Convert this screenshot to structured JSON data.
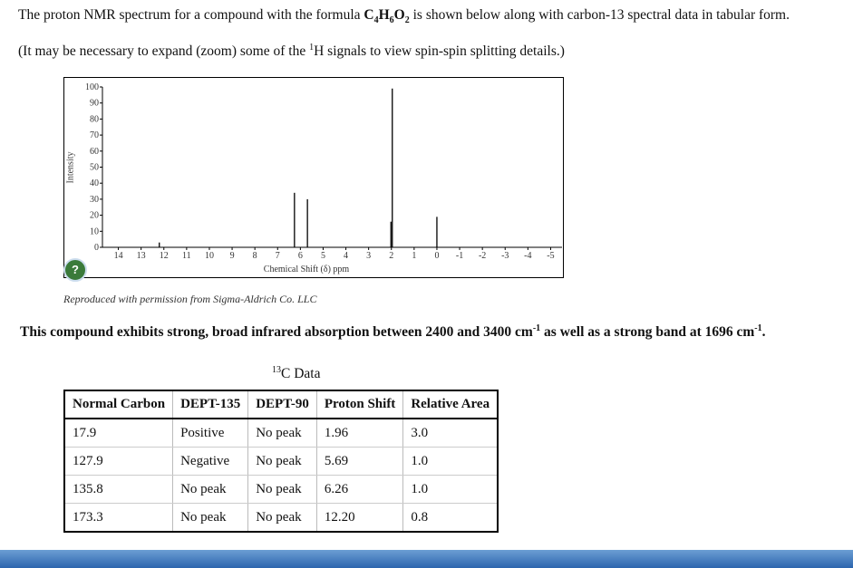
{
  "intro": {
    "parts": [
      "The proton NMR spectrum for a compound with the formula ",
      "C",
      "4",
      "H",
      "6",
      "O",
      "2",
      " is shown below along with carbon-13 spectral data in tabular form."
    ]
  },
  "note": {
    "parts": [
      "(It may be necessary to expand (zoom) some of the ",
      "1",
      "H signals to view spin-spin splitting details.)"
    ]
  },
  "chart_data": {
    "type": "stick",
    "xlabel": "Chemical Shift (δ) ppm",
    "ylabel": "Intensity",
    "x": [
      12.2,
      6.26,
      5.69,
      2.02,
      1.96,
      0
    ],
    "values": [
      3,
      34,
      30,
      16,
      99,
      19
    ],
    "color": "#000000",
    "xlim": [
      14.7,
      -5.5
    ],
    "xticks": [
      14,
      13,
      12,
      11,
      10,
      9,
      8,
      7,
      6,
      5,
      4,
      3,
      2,
      1,
      0,
      -1,
      -2,
      -3,
      -4,
      -5
    ],
    "ylim": [
      0,
      100
    ],
    "yticks": [
      0,
      10,
      20,
      30,
      40,
      50,
      60,
      70,
      80,
      90,
      100
    ]
  },
  "help": "?",
  "credit": "Reproduced with permission from Sigma-Aldrich Co. LLC",
  "ir": {
    "parts": [
      "This compound exhibits strong, broad infrared absorption between 2400 and 3400 cm",
      "-1",
      " as well as a strong band at 1696 cm",
      "-1",
      "."
    ]
  },
  "table": {
    "caption": [
      "13",
      "C Data"
    ],
    "headers": [
      "Normal Carbon",
      "DEPT-135",
      "DEPT-90",
      "Proton Shift",
      "Relative Area"
    ],
    "rows": [
      [
        "17.9",
        "Positive",
        "No peak",
        "1.96",
        "3.0"
      ],
      [
        "127.9",
        "Negative",
        "No peak",
        "5.69",
        "1.0"
      ],
      [
        "135.8",
        "No peak",
        "No peak",
        "6.26",
        "1.0"
      ],
      [
        "173.3",
        "No peak",
        "No peak",
        "12.20",
        "0.8"
      ]
    ]
  }
}
